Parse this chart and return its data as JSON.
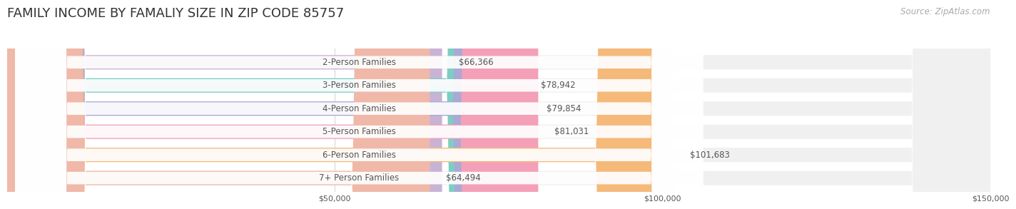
{
  "title": "FAMILY INCOME BY FAMALIY SIZE IN ZIP CODE 85757",
  "source": "Source: ZipAtlas.com",
  "categories": [
    "2-Person Families",
    "3-Person Families",
    "4-Person Families",
    "5-Person Families",
    "6-Person Families",
    "7+ Person Families"
  ],
  "values": [
    66366,
    78942,
    79854,
    81031,
    101683,
    64494
  ],
  "bar_colors": [
    "#c9b3d5",
    "#7ecdc4",
    "#a9a9d5",
    "#f4a0b8",
    "#f5b97a",
    "#f0b8a8"
  ],
  "bar_bg_color": "#f0f0f0",
  "label_bg_color": "#ffffff",
  "xlim": [
    0,
    150000
  ],
  "xticks": [
    0,
    50000,
    100000,
    150000
  ],
  "xtick_labels": [
    "",
    "$50,000",
    "$100,000",
    "$150,000"
  ],
  "value_labels": [
    "$66,366",
    "$78,942",
    "$79,854",
    "$81,031",
    "$101,683",
    "$64,494"
  ],
  "title_fontsize": 13,
  "label_fontsize": 8.5,
  "value_fontsize": 8.5,
  "source_fontsize": 8.5,
  "bg_color": "#ffffff",
  "grid_color": "#d8d8d8",
  "text_color": "#555555",
  "title_color": "#333333"
}
